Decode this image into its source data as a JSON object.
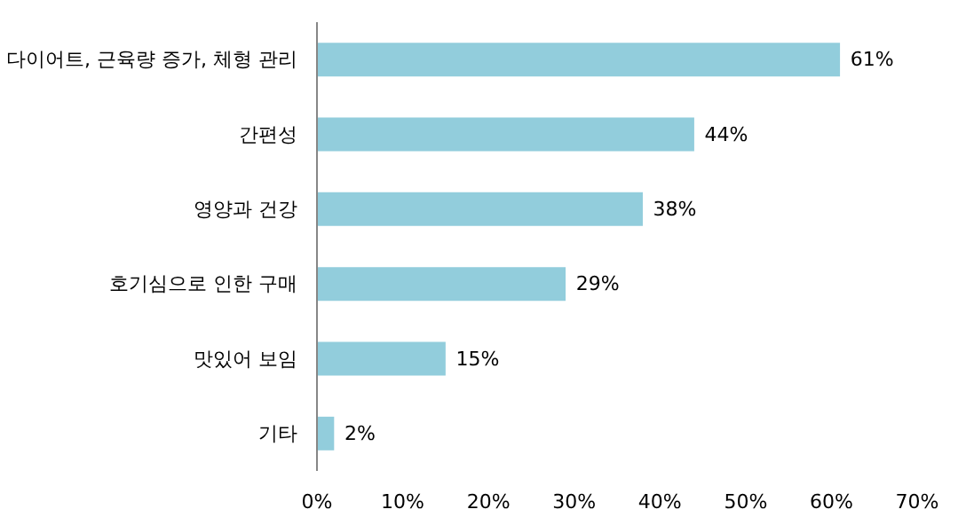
{
  "chart_data": {
    "type": "bar",
    "orientation": "horizontal",
    "categories": [
      "다이어트, 근육량 증가, 체형 관리",
      "간편성",
      "영양과 건강",
      "호기심으로 인한 구매",
      "맛있어 보임",
      "기타"
    ],
    "values": [
      61,
      44,
      38,
      29,
      15,
      2
    ],
    "value_labels": [
      "61%",
      "44%",
      "38%",
      "29%",
      "15%",
      "2%"
    ],
    "color": "#92cddc",
    "xlim": [
      0,
      70
    ],
    "xticks": [
      {
        "value": 0,
        "label": "0%"
      },
      {
        "value": 10,
        "label": "10%"
      },
      {
        "value": 20,
        "label": "20%"
      },
      {
        "value": 30,
        "label": "30%"
      },
      {
        "value": 40,
        "label": "40%"
      },
      {
        "value": 50,
        "label": "50%"
      },
      {
        "value": 60,
        "label": "60%"
      },
      {
        "value": 70,
        "label": "70%"
      }
    ],
    "grid": false
  }
}
